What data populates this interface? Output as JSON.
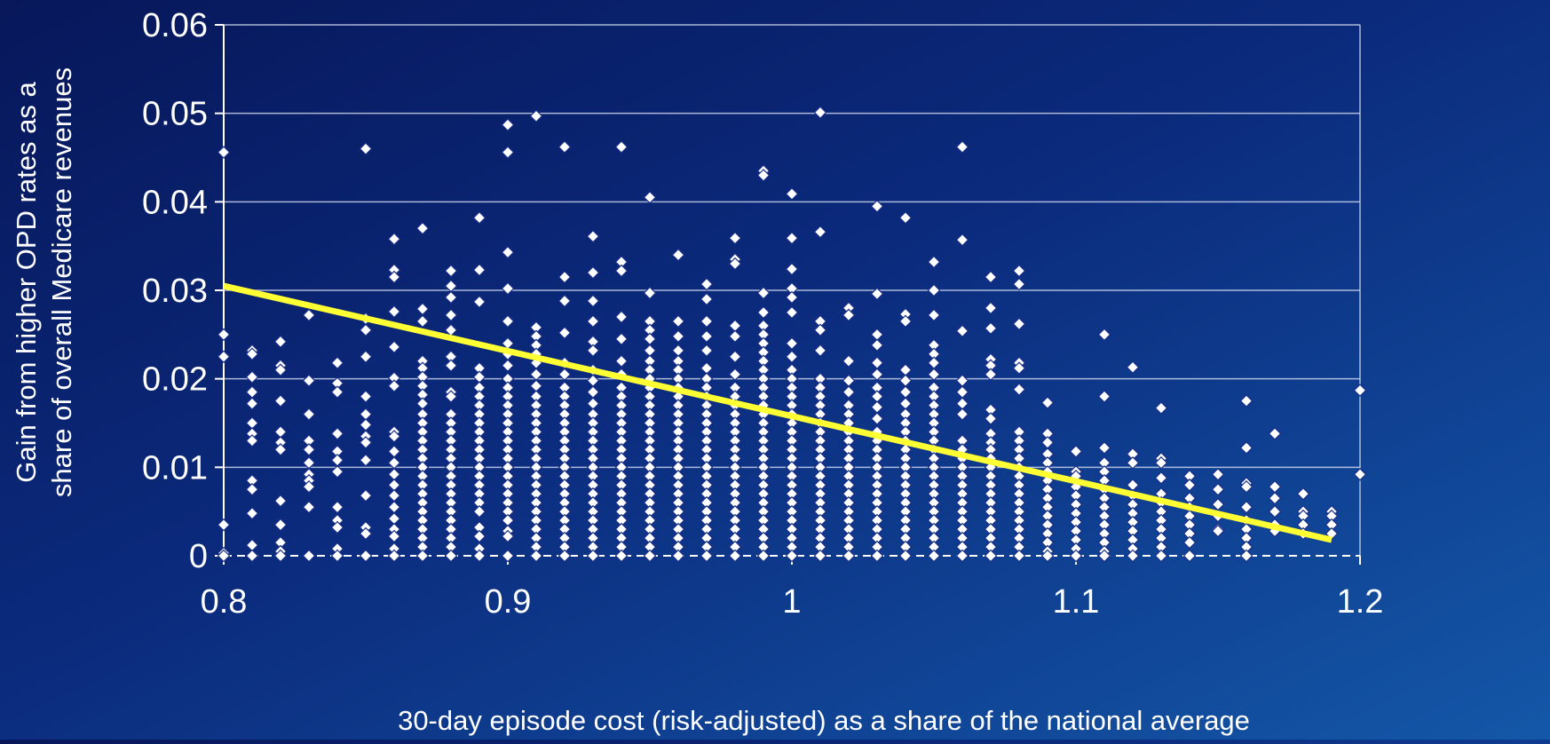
{
  "colors": {
    "background_top": "#07175a",
    "background_bottom": "#1457a8",
    "grid": "#c8d3ea",
    "point_fill": "#ffffff",
    "point_stroke": "#1a2f8a",
    "trend_line": "#ffff33",
    "text": "#ffffff"
  },
  "chart_data": {
    "type": "scatter",
    "title": "",
    "xlabel": "30-day episode cost (risk-adjusted) as a share of the national average",
    "ylabel_lines": [
      "Gain from higher OPD rates as a",
      "share of  overall Medicare revenues"
    ],
    "xlim": [
      0.8,
      1.2
    ],
    "ylim": [
      0,
      0.06
    ],
    "x_ticks": [
      0.8,
      0.9,
      1.0,
      1.1,
      1.2
    ],
    "x_tick_labels": [
      "0.8",
      "0.9",
      "1",
      "1.1",
      "1.2"
    ],
    "y_ticks": [
      0,
      0.01,
      0.02,
      0.03,
      0.04,
      0.05,
      0.06
    ],
    "y_tick_labels": [
      "0",
      "0.01",
      "0.02",
      "0.03",
      "0.04",
      "0.05",
      "0.06"
    ],
    "grid": "horizontal",
    "legend": "none",
    "trend_line": {
      "x": [
        0.8,
        1.19
      ],
      "y": [
        0.0305,
        0.0018
      ]
    },
    "points_by_x": [
      {
        "x": 0.8,
        "y": [
          0.0456,
          0.025,
          0.0225,
          0.0035,
          0.0003,
          0
        ]
      },
      {
        "x": 0.81,
        "y": [
          0.0232,
          0.0228,
          0.0202,
          0.0185,
          0.0172,
          0.015,
          0.0138,
          0.013,
          0.0085,
          0.0075,
          0.0048,
          0.0012,
          0
        ]
      },
      {
        "x": 0.82,
        "y": [
          0.0242,
          0.0215,
          0.021,
          0.0175,
          0.014,
          0.0128,
          0.012,
          0.0062,
          0.0035,
          0.0015,
          0.0005,
          0
        ]
      },
      {
        "x": 0.83,
        "y": [
          0.0272,
          0.0198,
          0.016,
          0.013,
          0.012,
          0.0105,
          0.0092,
          0.0085,
          0.0078,
          0.0055,
          0
        ]
      },
      {
        "x": 0.84,
        "y": [
          0.0218,
          0.0195,
          0.0185,
          0.0138,
          0.0118,
          0.0108,
          0.0095,
          0.0055,
          0.004,
          0.0032,
          0.0008,
          0
        ]
      },
      {
        "x": 0.85,
        "y": [
          0.046,
          0.0268,
          0.0255,
          0.0225,
          0.018,
          0.016,
          0.0148,
          0.0135,
          0.0128,
          0.0108,
          0.0068,
          0.0032,
          0.0025,
          0
        ]
      },
      {
        "x": 0.86,
        "y": [
          0.0358,
          0.0323,
          0.0315,
          0.0276,
          0.0236,
          0.0201,
          0.0192,
          0.014,
          0.0135,
          0.0118,
          0.0105,
          0.0092,
          0.008,
          0.0068,
          0.0055,
          0.0042,
          0.003,
          0.0022,
          0.0008,
          0
        ]
      },
      {
        "x": 0.87,
        "y": [
          0.037,
          0.0279,
          0.0265,
          0.022,
          0.0212,
          0.0202,
          0.0192,
          0.0182,
          0.0172,
          0.016,
          0.015,
          0.014,
          0.013,
          0.012,
          0.011,
          0.01,
          0.009,
          0.008,
          0.007,
          0.006,
          0.005,
          0.004,
          0.003,
          0.002,
          0.001,
          0
        ]
      },
      {
        "x": 0.88,
        "y": [
          0.0322,
          0.0305,
          0.0292,
          0.0272,
          0.0255,
          0.0225,
          0.0215,
          0.0185,
          0.018,
          0.016,
          0.015,
          0.014,
          0.013,
          0.012,
          0.011,
          0.01,
          0.009,
          0.008,
          0.007,
          0.006,
          0.005,
          0.004,
          0.003,
          0.002,
          0.001,
          0
        ]
      },
      {
        "x": 0.89,
        "y": [
          0.0382,
          0.0323,
          0.0287,
          0.0212,
          0.0202,
          0.019,
          0.018,
          0.017,
          0.016,
          0.015,
          0.014,
          0.013,
          0.012,
          0.011,
          0.01,
          0.009,
          0.008,
          0.007,
          0.006,
          0.005,
          0.0032,
          0.0022,
          0.0008,
          0
        ]
      },
      {
        "x": 0.9,
        "y": [
          0.0487,
          0.0456,
          0.0343,
          0.0302,
          0.0265,
          0.024,
          0.0228,
          0.0215,
          0.02,
          0.019,
          0.018,
          0.017,
          0.016,
          0.015,
          0.014,
          0.013,
          0.012,
          0.011,
          0.01,
          0.009,
          0.008,
          0.007,
          0.006,
          0.005,
          0.004,
          0.0028,
          0.0022,
          0
        ]
      },
      {
        "x": 0.91,
        "y": [
          0.0497,
          0.0258,
          0.0248,
          0.0238,
          0.0228,
          0.0218,
          0.0205,
          0.0192,
          0.018,
          0.017,
          0.016,
          0.015,
          0.014,
          0.013,
          0.012,
          0.011,
          0.01,
          0.009,
          0.008,
          0.007,
          0.006,
          0.005,
          0.004,
          0.003,
          0.002,
          0.001,
          0
        ]
      },
      {
        "x": 0.92,
        "y": [
          0.0462,
          0.0315,
          0.0288,
          0.0252,
          0.0218,
          0.0205,
          0.019,
          0.018,
          0.017,
          0.016,
          0.015,
          0.014,
          0.013,
          0.012,
          0.011,
          0.01,
          0.009,
          0.008,
          0.007,
          0.006,
          0.005,
          0.004,
          0.003,
          0.002,
          0.001,
          0
        ]
      },
      {
        "x": 0.93,
        "y": [
          0.0361,
          0.032,
          0.0288,
          0.0265,
          0.0242,
          0.0232,
          0.021,
          0.0198,
          0.0185,
          0.0172,
          0.016,
          0.015,
          0.014,
          0.013,
          0.012,
          0.011,
          0.01,
          0.009,
          0.008,
          0.007,
          0.006,
          0.005,
          0.004,
          0.003,
          0.002,
          0.001,
          0
        ]
      },
      {
        "x": 0.94,
        "y": [
          0.0462,
          0.0332,
          0.0322,
          0.027,
          0.0245,
          0.022,
          0.0205,
          0.019,
          0.018,
          0.017,
          0.016,
          0.015,
          0.014,
          0.013,
          0.012,
          0.011,
          0.01,
          0.009,
          0.008,
          0.007,
          0.006,
          0.005,
          0.004,
          0.003,
          0.002,
          0.001,
          0
        ]
      },
      {
        "x": 0.95,
        "y": [
          0.0405,
          0.0297,
          0.0265,
          0.0255,
          0.0245,
          0.0232,
          0.022,
          0.021,
          0.02,
          0.019,
          0.018,
          0.017,
          0.016,
          0.015,
          0.014,
          0.013,
          0.012,
          0.011,
          0.01,
          0.009,
          0.008,
          0.007,
          0.006,
          0.005,
          0.004,
          0.003,
          0.002,
          0.001,
          0
        ]
      },
      {
        "x": 0.96,
        "y": [
          0.034,
          0.0265,
          0.0248,
          0.0232,
          0.022,
          0.021,
          0.02,
          0.019,
          0.018,
          0.017,
          0.016,
          0.015,
          0.014,
          0.013,
          0.012,
          0.011,
          0.01,
          0.009,
          0.008,
          0.007,
          0.006,
          0.005,
          0.004,
          0.003,
          0.002,
          0.001,
          0
        ]
      },
      {
        "x": 0.97,
        "y": [
          0.0307,
          0.029,
          0.0265,
          0.0248,
          0.0232,
          0.0212,
          0.02,
          0.019,
          0.018,
          0.017,
          0.016,
          0.015,
          0.014,
          0.013,
          0.012,
          0.011,
          0.01,
          0.009,
          0.008,
          0.007,
          0.006,
          0.005,
          0.004,
          0.003,
          0.002,
          0.001,
          0
        ]
      },
      {
        "x": 0.98,
        "y": [
          0.0359,
          0.0335,
          0.033,
          0.026,
          0.0248,
          0.0225,
          0.0205,
          0.019,
          0.018,
          0.017,
          0.016,
          0.015,
          0.014,
          0.013,
          0.012,
          0.011,
          0.01,
          0.009,
          0.008,
          0.007,
          0.006,
          0.005,
          0.004,
          0.003,
          0.002,
          0.001,
          0
        ]
      },
      {
        "x": 0.99,
        "y": [
          0.0435,
          0.043,
          0.0297,
          0.0275,
          0.026,
          0.025,
          0.024,
          0.023,
          0.022,
          0.021,
          0.02,
          0.019,
          0.018,
          0.017,
          0.016,
          0.015,
          0.014,
          0.013,
          0.012,
          0.011,
          0.01,
          0.009,
          0.008,
          0.007,
          0.006,
          0.005,
          0.004,
          0.003,
          0.002,
          0.001,
          0
        ]
      },
      {
        "x": 1.0,
        "y": [
          0.0409,
          0.0359,
          0.0324,
          0.0302,
          0.0292,
          0.0275,
          0.024,
          0.0225,
          0.021,
          0.02,
          0.019,
          0.018,
          0.017,
          0.016,
          0.015,
          0.014,
          0.013,
          0.012,
          0.011,
          0.01,
          0.009,
          0.008,
          0.007,
          0.006,
          0.005,
          0.004,
          0.003,
          0.002,
          0.001,
          0
        ]
      },
      {
        "x": 1.01,
        "y": [
          0.0501,
          0.0366,
          0.0265,
          0.0255,
          0.0232,
          0.02,
          0.019,
          0.018,
          0.017,
          0.016,
          0.015,
          0.014,
          0.013,
          0.012,
          0.011,
          0.01,
          0.009,
          0.008,
          0.007,
          0.006,
          0.005,
          0.004,
          0.003,
          0.002,
          0.001,
          0
        ]
      },
      {
        "x": 1.02,
        "y": [
          0.028,
          0.0272,
          0.022,
          0.0198,
          0.0185,
          0.017,
          0.016,
          0.015,
          0.014,
          0.013,
          0.012,
          0.011,
          0.01,
          0.009,
          0.008,
          0.007,
          0.006,
          0.005,
          0.004,
          0.003,
          0.002,
          0.001,
          0
        ]
      },
      {
        "x": 1.03,
        "y": [
          0.0395,
          0.0296,
          0.025,
          0.0238,
          0.0218,
          0.0205,
          0.019,
          0.018,
          0.0168,
          0.0155,
          0.014,
          0.013,
          0.012,
          0.011,
          0.01,
          0.009,
          0.008,
          0.007,
          0.006,
          0.005,
          0.004,
          0.003,
          0.002,
          0.001,
          0
        ]
      },
      {
        "x": 1.04,
        "y": [
          0.0382,
          0.0273,
          0.0265,
          0.021,
          0.0198,
          0.0185,
          0.0172,
          0.016,
          0.015,
          0.014,
          0.013,
          0.012,
          0.011,
          0.01,
          0.009,
          0.008,
          0.007,
          0.006,
          0.005,
          0.004,
          0.003,
          0.002,
          0.001,
          0
        ]
      },
      {
        "x": 1.05,
        "y": [
          0.0332,
          0.03,
          0.0272,
          0.0238,
          0.0228,
          0.0218,
          0.0205,
          0.019,
          0.018,
          0.017,
          0.016,
          0.015,
          0.014,
          0.013,
          0.012,
          0.011,
          0.01,
          0.009,
          0.008,
          0.007,
          0.006,
          0.005,
          0.004,
          0.003,
          0.002,
          0.001,
          0
        ]
      },
      {
        "x": 1.06,
        "y": [
          0.0462,
          0.0357,
          0.0254,
          0.0198,
          0.0185,
          0.0172,
          0.016,
          0.013,
          0.012,
          0.011,
          0.01,
          0.009,
          0.008,
          0.007,
          0.006,
          0.005,
          0.004,
          0.003,
          0.002,
          0.001,
          0
        ]
      },
      {
        "x": 1.07,
        "y": [
          0.0315,
          0.028,
          0.0257,
          0.0222,
          0.0215,
          0.0205,
          0.0165,
          0.0155,
          0.0138,
          0.0128,
          0.012,
          0.011,
          0.01,
          0.009,
          0.008,
          0.007,
          0.006,
          0.005,
          0.004,
          0.003,
          0.002,
          0.001,
          0
        ]
      },
      {
        "x": 1.08,
        "y": [
          0.0322,
          0.0307,
          0.0262,
          0.0218,
          0.0212,
          0.0188,
          0.014,
          0.013,
          0.012,
          0.011,
          0.01,
          0.009,
          0.008,
          0.007,
          0.006,
          0.005,
          0.004,
          0.003,
          0.002,
          0.001,
          0
        ]
      },
      {
        "x": 1.09,
        "y": [
          0.0173,
          0.0138,
          0.0128,
          0.0115,
          0.0105,
          0.0095,
          0.0085,
          0.0075,
          0.0065,
          0.0055,
          0.0045,
          0.0035,
          0.0025,
          0.0015,
          0.0005,
          0
        ]
      },
      {
        "x": 1.1,
        "y": [
          0.0118,
          0.0095,
          0.009,
          0.0078,
          0.0068,
          0.0058,
          0.0048,
          0.0038,
          0.0028,
          0.0018,
          0.0008,
          0
        ]
      },
      {
        "x": 1.11,
        "y": [
          0.025,
          0.018,
          0.0122,
          0.0105,
          0.0095,
          0.0085,
          0.0075,
          0.0065,
          0.0055,
          0.0045,
          0.0035,
          0.0025,
          0.0015,
          0.0005,
          0
        ]
      },
      {
        "x": 1.12,
        "y": [
          0.0213,
          0.0115,
          0.0105,
          0.008,
          0.0068,
          0.0058,
          0.0048,
          0.0038,
          0.0028,
          0.0018,
          0.0008,
          0
        ]
      },
      {
        "x": 1.13,
        "y": [
          0.0167,
          0.011,
          0.0105,
          0.0088,
          0.007,
          0.006,
          0.005,
          0.004,
          0.003,
          0.002,
          0.001,
          0
        ]
      },
      {
        "x": 1.14,
        "y": [
          0.009,
          0.008,
          0.0065,
          0.0055,
          0.0045,
          0.0035,
          0.0025,
          0.0015,
          0
        ]
      },
      {
        "x": 1.15,
        "y": [
          0.0092,
          0.0075,
          0.0058,
          0.0045,
          0.003,
          0.0028
        ]
      },
      {
        "x": 1.16,
        "y": [
          0.0175,
          0.0122,
          0.0082,
          0.0078,
          0.0055,
          0.004,
          0.003,
          0.002,
          0.001,
          0
        ]
      },
      {
        "x": 1.17,
        "y": [
          0.0138,
          0.0078,
          0.0065,
          0.005,
          0.0035,
          0.0028
        ]
      },
      {
        "x": 1.18,
        "y": [
          0.007,
          0.005,
          0.0045,
          0.0035,
          0.0025
        ]
      },
      {
        "x": 1.19,
        "y": [
          0.005,
          0.0045,
          0.0035,
          0.0025
        ]
      },
      {
        "x": 1.2,
        "y": [
          0.0187,
          0.0092
        ]
      }
    ]
  }
}
